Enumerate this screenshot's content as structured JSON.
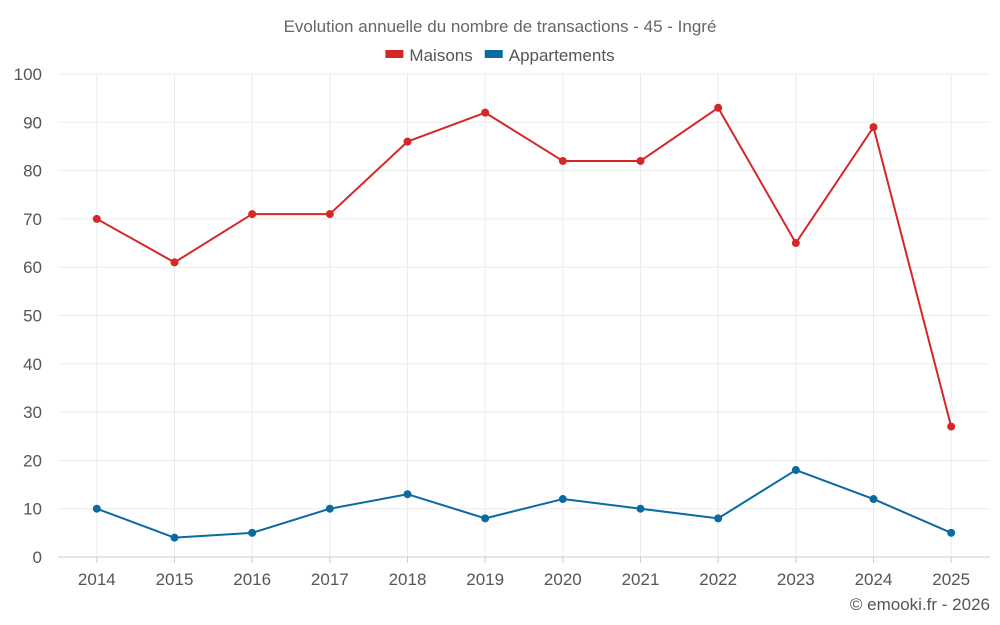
{
  "chart_data": {
    "type": "line",
    "title": "Evolution annuelle du nombre de transactions - 45 - Ingré",
    "categories": [
      "2014",
      "2015",
      "2016",
      "2017",
      "2018",
      "2019",
      "2020",
      "2021",
      "2022",
      "2023",
      "2024",
      "2025"
    ],
    "series": [
      {
        "name": "Maisons",
        "color": "#d62728",
        "values": [
          70,
          61,
          71,
          71,
          86,
          92,
          82,
          82,
          93,
          65,
          89,
          27
        ]
      },
      {
        "name": "Appartements",
        "color": "#0a6aa1",
        "values": [
          10,
          4,
          5,
          10,
          13,
          8,
          12,
          10,
          8,
          18,
          12,
          5
        ]
      }
    ],
    "ylim": [
      0,
      100
    ],
    "yticks": [
      0,
      10,
      20,
      30,
      40,
      50,
      60,
      70,
      80,
      90,
      100
    ],
    "xlabel": "",
    "ylabel": "",
    "grid": true,
    "legend": "top-center"
  },
  "credit": "© emooki.fr - 2026"
}
